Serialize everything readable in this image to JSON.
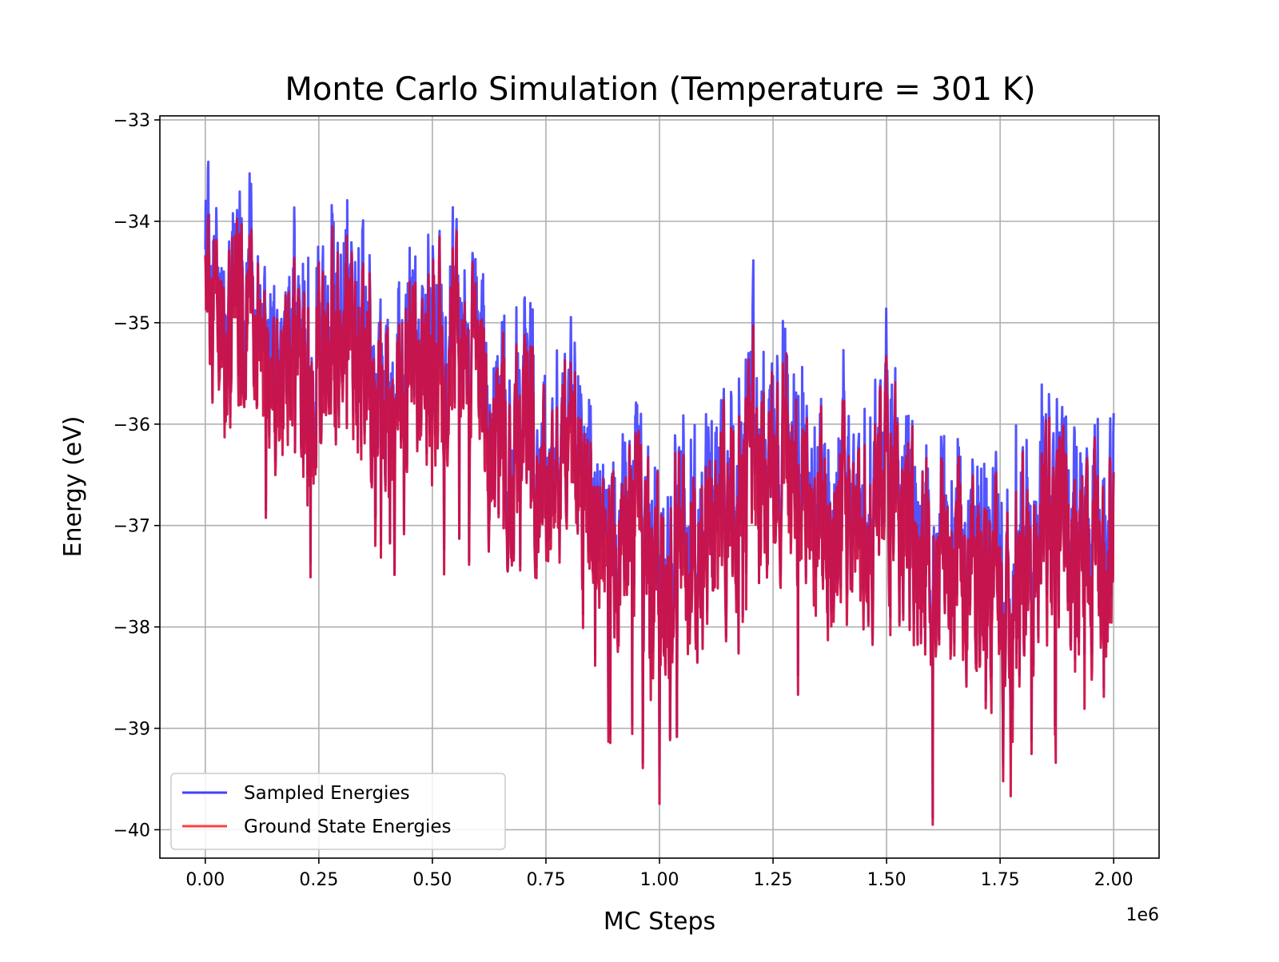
{
  "chart_data": {
    "type": "line",
    "title": "Monte Carlo Simulation (Temperature = 301 K)",
    "xlabel": "MC Steps",
    "ylabel": "Energy (eV)",
    "x_offset_label": "1e6",
    "xlim": [
      -0.1,
      2.1
    ],
    "ylim": [
      -40.28,
      -32.96
    ],
    "x_scale": 1000000,
    "x_ticks": [
      0.0,
      0.25,
      0.5,
      0.75,
      1.0,
      1.25,
      1.5,
      1.75,
      2.0
    ],
    "x_tick_labels": [
      "0.00",
      "0.25",
      "0.50",
      "0.75",
      "1.00",
      "1.25",
      "1.50",
      "1.75",
      "2.00"
    ],
    "y_ticks": [
      -33,
      -34,
      -35,
      -36,
      -37,
      -38,
      -39,
      -40
    ],
    "y_tick_labels": [
      "−33",
      "−34",
      "−35",
      "−36",
      "−37",
      "−38",
      "−39",
      "−40"
    ],
    "grid": true,
    "legend_position": "lower left",
    "x": [
      0.0,
      0.025,
      0.05,
      0.075,
      0.1,
      0.125,
      0.15,
      0.175,
      0.2,
      0.225,
      0.25,
      0.275,
      0.3,
      0.325,
      0.35,
      0.375,
      0.4,
      0.425,
      0.45,
      0.475,
      0.5,
      0.525,
      0.55,
      0.575,
      0.6,
      0.625,
      0.65,
      0.675,
      0.7,
      0.725,
      0.75,
      0.775,
      0.8,
      0.825,
      0.85,
      0.875,
      0.9,
      0.925,
      0.95,
      0.975,
      1.0,
      1.025,
      1.05,
      1.075,
      1.1,
      1.125,
      1.15,
      1.175,
      1.2,
      1.225,
      1.25,
      1.275,
      1.3,
      1.325,
      1.35,
      1.375,
      1.4,
      1.425,
      1.45,
      1.475,
      1.5,
      1.525,
      1.55,
      1.575,
      1.6,
      1.625,
      1.65,
      1.675,
      1.7,
      1.725,
      1.75,
      1.775,
      1.8,
      1.825,
      1.85,
      1.875,
      1.9,
      1.925,
      1.95,
      1.975,
      2.0
    ],
    "series": [
      {
        "name": "Sampled Energies",
        "color": "#4040ff",
        "values": [
          -35.0,
          -34.8,
          -35.3,
          -34.5,
          -35.1,
          -35.4,
          -35.6,
          -35.7,
          -35.2,
          -35.5,
          -35.7,
          -35.3,
          -34.9,
          -35.1,
          -35.4,
          -35.7,
          -36.0,
          -35.8,
          -35.4,
          -35.6,
          -35.2,
          -35.5,
          -35.3,
          -35.7,
          -35.6,
          -36.2,
          -36.0,
          -36.5,
          -35.9,
          -36.3,
          -36.7,
          -36.5,
          -36.2,
          -36.8,
          -37.0,
          -37.3,
          -37.2,
          -37.5,
          -36.9,
          -37.6,
          -37.3,
          -37.5,
          -37.1,
          -37.4,
          -37.2,
          -37.0,
          -36.8,
          -36.6,
          -36.3,
          -36.5,
          -36.2,
          -36.5,
          -36.7,
          -36.4,
          -36.9,
          -37.1,
          -36.8,
          -37.2,
          -37.0,
          -36.7,
          -36.6,
          -36.8,
          -37.0,
          -37.2,
          -37.4,
          -37.2,
          -37.5,
          -37.3,
          -37.7,
          -37.5,
          -37.8,
          -37.6,
          -37.4,
          -37.2,
          -37.3,
          -36.9,
          -37.2,
          -37.5,
          -37.3,
          -37.4,
          -37.1
        ]
      },
      {
        "name": "Ground State Energies",
        "color": "#ff4040",
        "values": [
          -35.0,
          -34.8,
          -35.3,
          -34.5,
          -35.1,
          -35.4,
          -35.6,
          -35.7,
          -35.2,
          -35.5,
          -35.7,
          -35.3,
          -34.9,
          -35.1,
          -35.4,
          -35.7,
          -36.0,
          -35.8,
          -35.4,
          -35.6,
          -35.2,
          -35.5,
          -35.3,
          -35.7,
          -35.6,
          -36.2,
          -36.0,
          -36.5,
          -35.9,
          -36.3,
          -36.7,
          -36.5,
          -36.2,
          -36.8,
          -37.0,
          -37.3,
          -37.2,
          -37.5,
          -36.9,
          -37.6,
          -37.3,
          -37.5,
          -37.1,
          -37.4,
          -37.2,
          -37.0,
          -36.8,
          -36.6,
          -36.3,
          -36.5,
          -36.2,
          -36.5,
          -36.7,
          -36.4,
          -36.9,
          -37.1,
          -36.8,
          -37.2,
          -37.0,
          -36.7,
          -36.6,
          -36.8,
          -37.0,
          -37.2,
          -37.4,
          -37.2,
          -37.5,
          -37.3,
          -37.7,
          -37.5,
          -37.8,
          -37.6,
          -37.4,
          -37.2,
          -37.3,
          -36.9,
          -37.2,
          -37.5,
          -37.3,
          -37.4,
          -37.1
        ]
      }
    ],
    "blend_color": "#cc1144",
    "legend": [
      "Sampled Energies",
      "Ground State Energies"
    ]
  }
}
